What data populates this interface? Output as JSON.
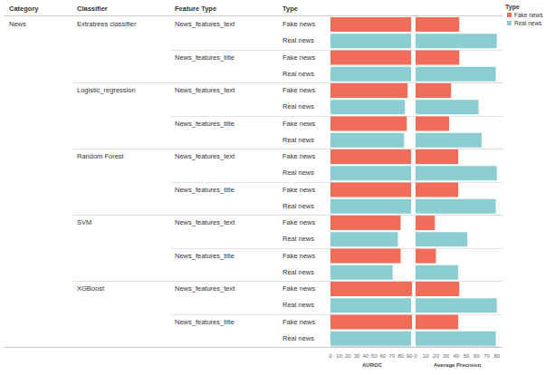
{
  "chart_data": {
    "type": "bar",
    "orientation": "horizontal",
    "headers": [
      "Category",
      "Classifier",
      "Feature Type",
      "Type"
    ],
    "category": "News",
    "classifiers": [
      "Extratrees classifier",
      "Logistic_regression",
      "Random Forest",
      "SVM",
      "XGBoost"
    ],
    "feature_types": [
      "News_features_text",
      "News_features_title"
    ],
    "legend_title": "Type",
    "series": [
      {
        "name": "Fake news",
        "color": "#f26c5a"
      },
      {
        "name": "Real news",
        "color": "#8ccdd1"
      }
    ],
    "panels": [
      {
        "xlabel": "AUROC",
        "xlim": [
          0,
          95
        ],
        "xticks": [
          0,
          10,
          20,
          30,
          40,
          50,
          60,
          70,
          80,
          90
        ],
        "values": [
          92,
          92,
          92,
          92,
          88,
          85,
          87,
          84,
          92,
          92,
          92,
          92,
          80,
          77,
          80,
          71,
          93,
          92,
          93,
          92
        ]
      },
      {
        "xlabel": "Average Precision",
        "xlim": [
          0,
          82
        ],
        "xticks": [
          0,
          10,
          20,
          30,
          40,
          50,
          60,
          70,
          80
        ],
        "values": [
          43,
          80,
          43,
          79,
          35,
          62,
          33,
          65,
          42,
          80,
          42,
          79,
          19,
          51,
          20,
          42,
          43,
          80,
          42,
          79
        ]
      }
    ]
  }
}
